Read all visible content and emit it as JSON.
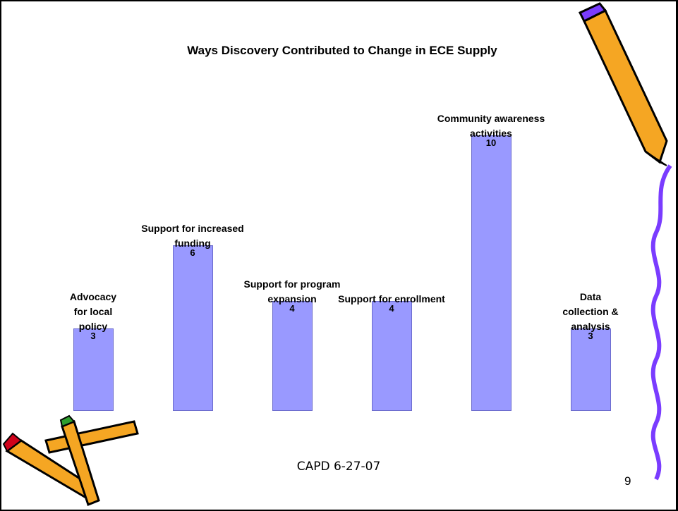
{
  "chart_data": {
    "type": "bar",
    "title": "Ways Discovery Contributed to Change in ECE Supply",
    "categories": [
      "Advocacy for local policy",
      "Support for increased funding",
      "Support for program expansion",
      "Support for enrollment",
      "Community awareness activities",
      "Data collection & analysis"
    ],
    "values": [
      3,
      6,
      4,
      4,
      10,
      3
    ],
    "color": "#9999ff"
  },
  "footer": {
    "text": "CAPD 6-27-07",
    "page": "9"
  }
}
